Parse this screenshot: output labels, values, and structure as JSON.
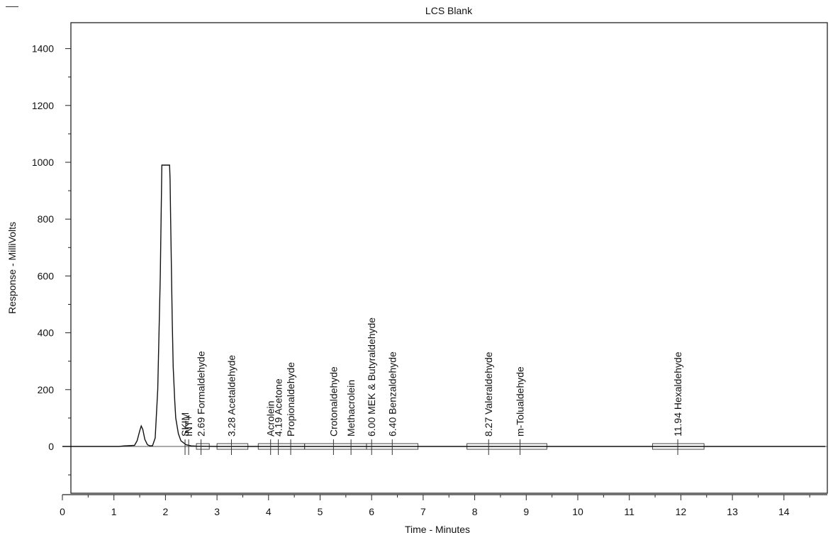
{
  "chart_data": {
    "type": "line",
    "title": "LCS Blank",
    "xlabel": "Time - Minutes",
    "ylabel": "Response - MilliVolts",
    "xlim": [
      0,
      14.8
    ],
    "ylim": [
      -170,
      1490
    ],
    "x_ticks": [
      0,
      1,
      2,
      3,
      4,
      5,
      6,
      7,
      8,
      9,
      10,
      11,
      12,
      13,
      14
    ],
    "y_ticks": [
      0,
      200,
      400,
      600,
      800,
      1000,
      1200,
      1400
    ],
    "grid": false,
    "series": [
      {
        "x": [
          0,
          1.1,
          1.2,
          1.3,
          1.4,
          1.45,
          1.5,
          1.53,
          1.56,
          1.6,
          1.65,
          1.7,
          1.75,
          1.8,
          1.85,
          1.9,
          1.93,
          1.95,
          2.08,
          2.09,
          2.1,
          2.13,
          2.15,
          2.18,
          2.2,
          2.25,
          2.3,
          2.4,
          2.5,
          2.6,
          3,
          14.8
        ],
        "y": [
          0,
          0,
          2,
          3,
          4,
          20,
          55,
          72,
          60,
          25,
          6,
          2,
          3,
          30,
          200,
          600,
          990,
          990,
          990,
          940,
          800,
          450,
          280,
          160,
          100,
          45,
          20,
          6,
          2,
          1,
          0,
          0
        ]
      }
    ],
    "peaks": [
      {
        "label": "SKIM",
        "time": 2.38
      },
      {
        "label": "INT+",
        "time": 2.45
      },
      {
        "label": "2.69  Formaldehyde",
        "time": 2.69
      },
      {
        "label": "3.28  Acetaldehyde",
        "time": 3.28
      },
      {
        "label": "Acrolein",
        "time": 4.04
      },
      {
        "label": "4.19  Acetone",
        "time": 4.19
      },
      {
        "label": "Propionaldehyde",
        "time": 4.43
      },
      {
        "label": "Crotonaldehyde",
        "time": 5.26
      },
      {
        "label": "Methacrolein",
        "time": 5.6
      },
      {
        "label": "6.00  MEK & Butyraldehyde",
        "time": 6.0
      },
      {
        "label": "6.40  Benzaldehyde",
        "time": 6.4
      },
      {
        "label": "8.27  Valeraldehyde",
        "time": 8.27
      },
      {
        "label": "m-Tolualdehyde",
        "time": 8.88
      },
      {
        "label": "11.94  Hexaldehyde",
        "time": 11.94
      }
    ],
    "windows": [
      [
        2.6,
        2.85
      ],
      [
        3.0,
        3.6
      ],
      [
        3.8,
        4.7
      ],
      [
        4.7,
        5.9
      ],
      [
        5.9,
        6.9
      ],
      [
        7.85,
        9.4
      ],
      [
        11.45,
        12.45
      ]
    ]
  }
}
